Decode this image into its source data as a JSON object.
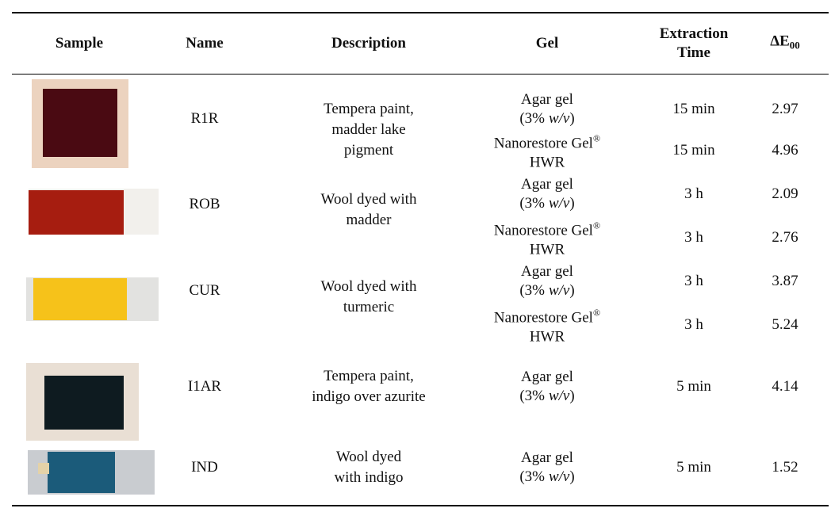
{
  "table": {
    "header": {
      "sample": "Sample",
      "name": "Name",
      "description": "Description",
      "gel": "Gel",
      "extraction_time": [
        "Extraction",
        "Time"
      ],
      "delta_e": {
        "symbol": "ΔE",
        "subscript": "00"
      }
    },
    "groups": [
      {
        "name": "R1R",
        "description": [
          "Tempera paint,",
          "madder lake",
          "pigment"
        ],
        "treatments": [
          {
            "gel": {
              "line1": "Agar gel",
              "line2": [
                "(3%",
                "w/v",
                ")"
              ]
            },
            "time": "15 min",
            "delta_e": 2.97
          },
          {
            "gel": {
              "line1": [
                "Nanorestore Gel",
                "®"
              ],
              "line2": "HWR"
            },
            "time": "15 min",
            "delta_e": 4.96
          }
        ]
      },
      {
        "name": "ROB",
        "description": [
          "Wool dyed with",
          "madder"
        ],
        "treatments": [
          {
            "gel": {
              "line1": "Agar gel",
              "line2": [
                "(3%",
                "w/v",
                ")"
              ]
            },
            "time": "3 h",
            "delta_e": 2.09
          },
          {
            "gel": {
              "line1": [
                "Nanorestore Gel",
                "®"
              ],
              "line2": "HWR"
            },
            "time": "3 h",
            "delta_e": 2.76
          }
        ]
      },
      {
        "name": "CUR",
        "description": [
          "Wool dyed with",
          "turmeric"
        ],
        "treatments": [
          {
            "gel": {
              "line1": "Agar gel",
              "line2": [
                "(3%",
                "w/v",
                ")"
              ]
            },
            "time": "3 h",
            "delta_e": 3.87
          },
          {
            "gel": {
              "line1": [
                "Nanorestore Gel",
                "®"
              ],
              "line2": "HWR"
            },
            "time": "3 h",
            "delta_e": 5.24
          }
        ]
      },
      {
        "name": "I1AR",
        "description": [
          "Tempera paint,",
          "indigo over azurite"
        ],
        "treatments": [
          {
            "gel": {
              "line1": "Agar gel",
              "line2": [
                "(3%",
                "w/v",
                ")"
              ]
            },
            "time": "5 min",
            "delta_e": 4.14
          }
        ]
      },
      {
        "name": "IND",
        "description": [
          "Wool dyed",
          "with indigo"
        ],
        "treatments": [
          {
            "gel": {
              "line1": "Agar gel",
              "line2": [
                "(3%",
                "w/v",
                ")"
              ]
            },
            "time": "5 min",
            "delta_e": 1.52
          }
        ]
      }
    ]
  }
}
